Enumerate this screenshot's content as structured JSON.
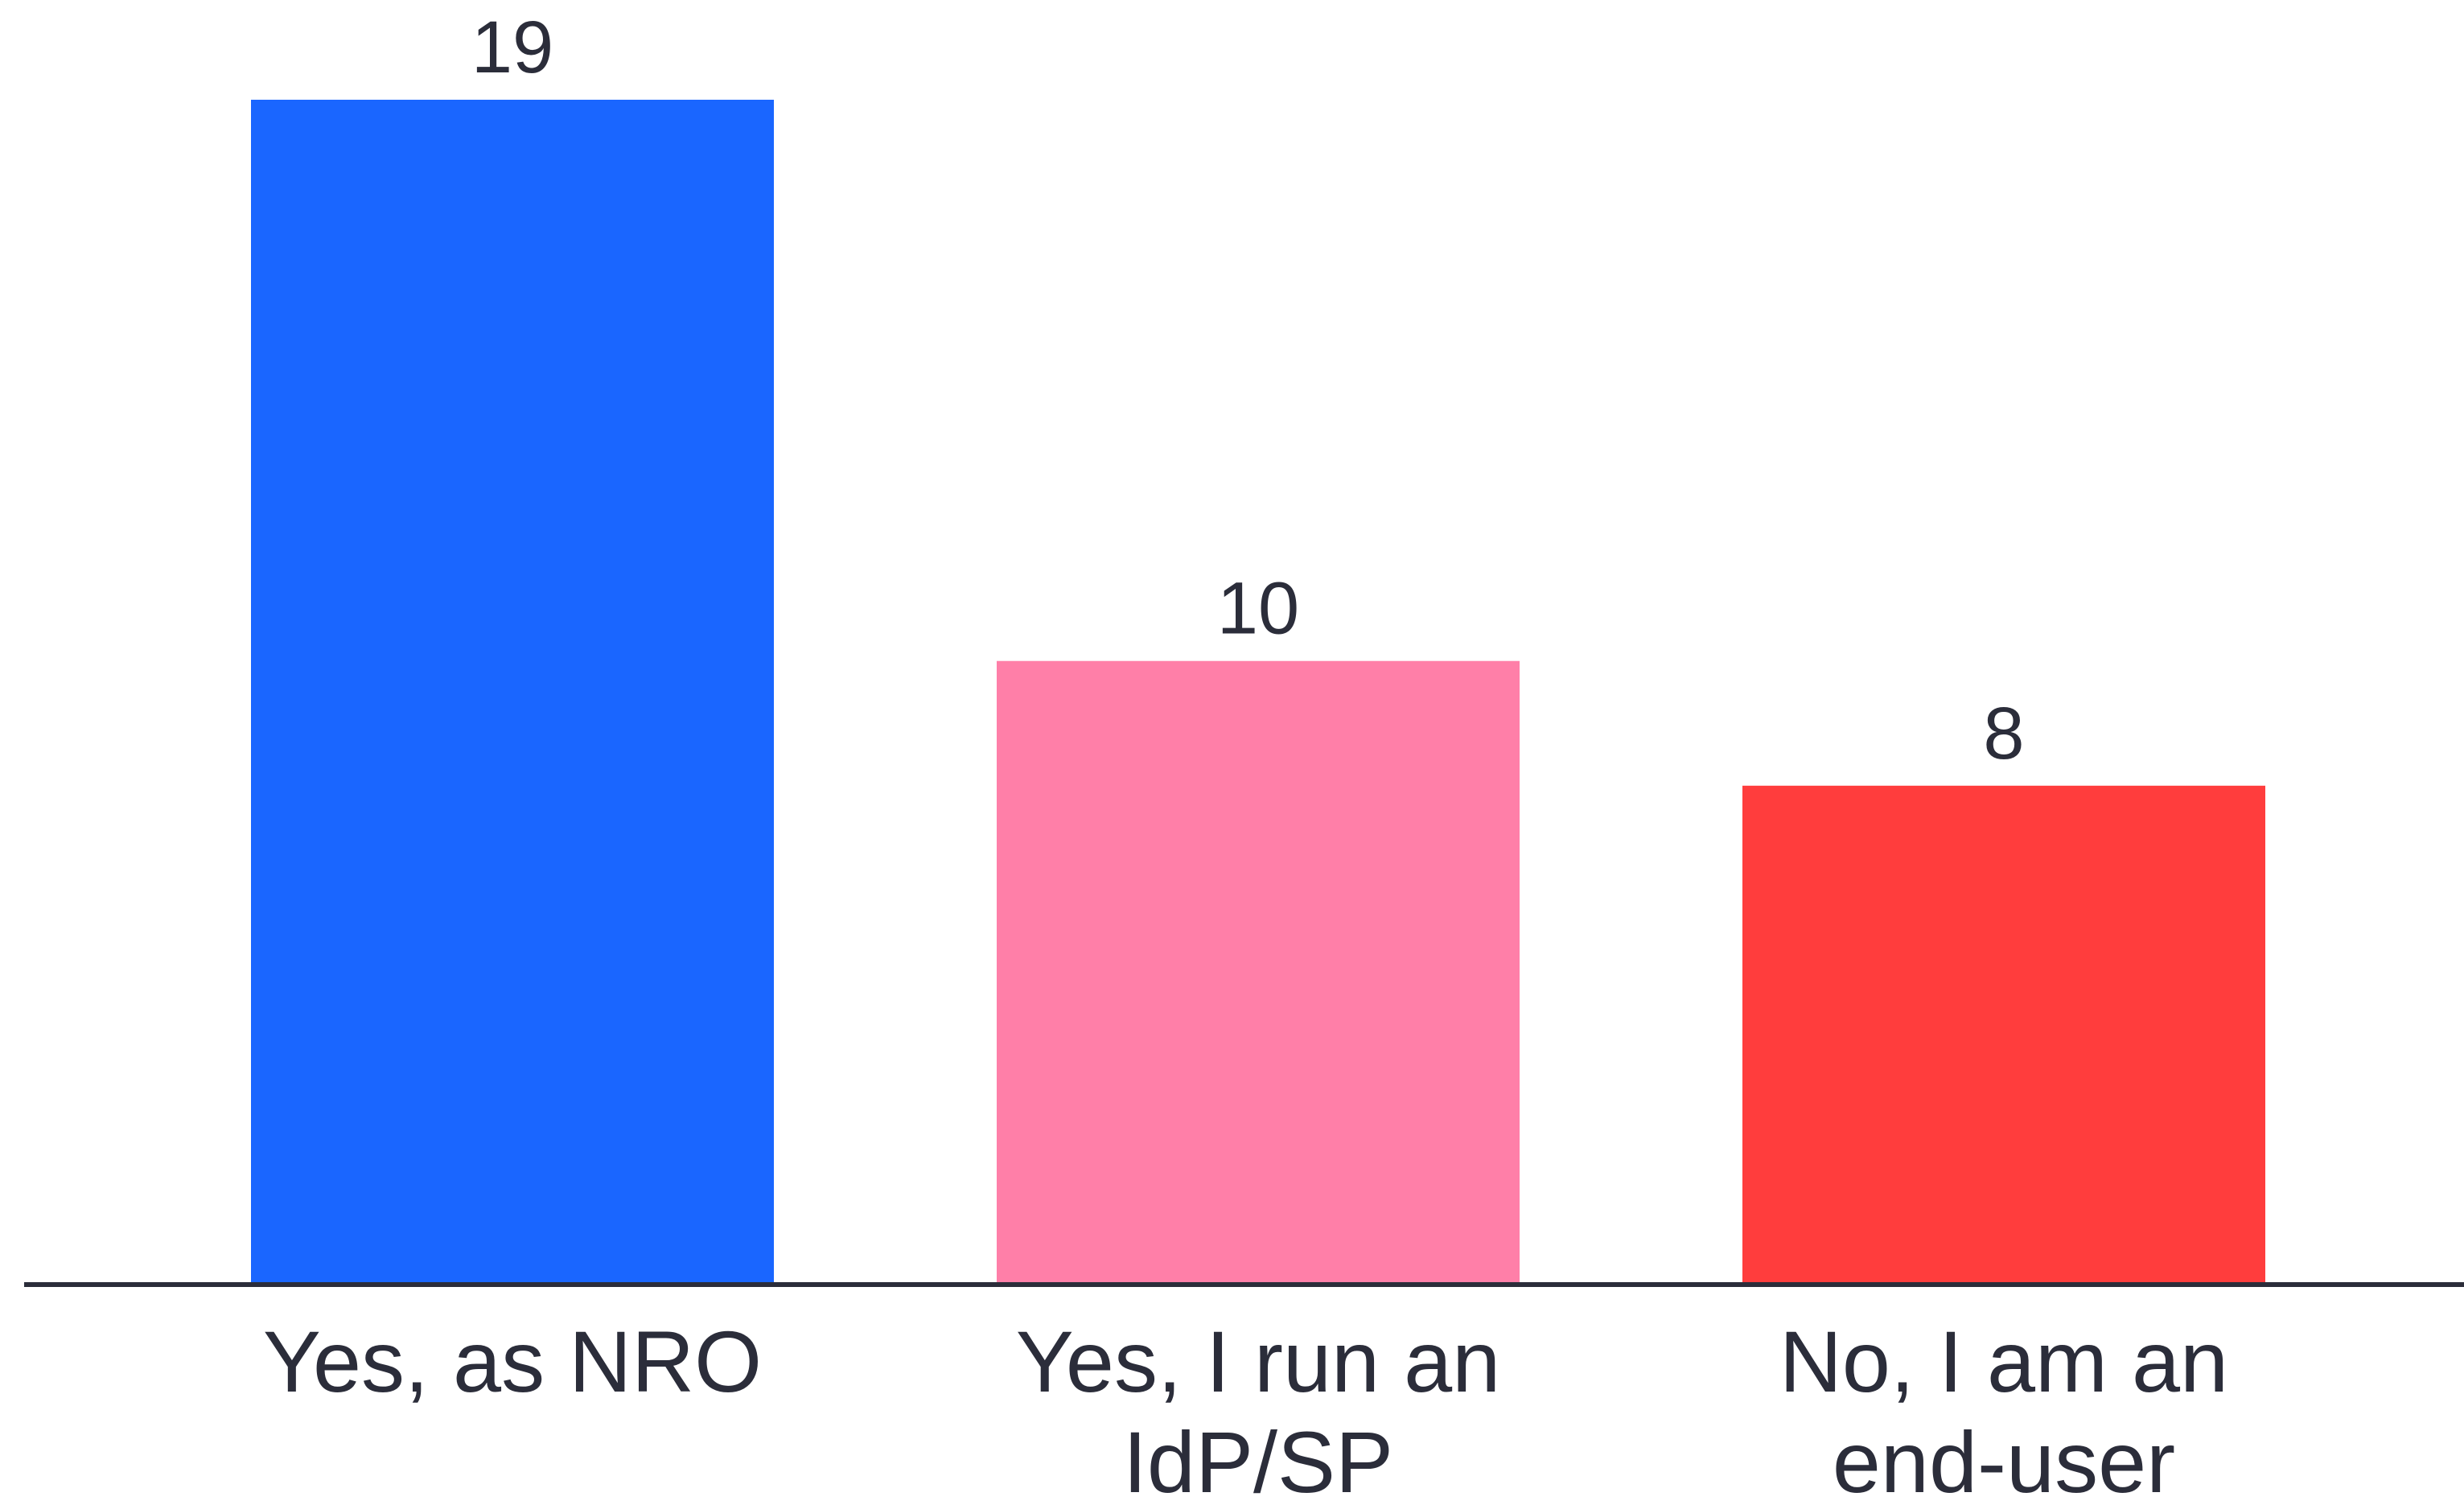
{
  "chart_data": {
    "type": "bar",
    "categories": [
      [
        "Yes, as NRO"
      ],
      [
        "Yes, I run an",
        "IdP/SP"
      ],
      [
        "No, I am an",
        "end-user"
      ]
    ],
    "values": [
      19,
      10,
      8
    ],
    "colors": [
      "#1a66ff",
      "#ff7fa8",
      "#ff3d3d"
    ],
    "data_labels": [
      "19",
      "10",
      "8"
    ],
    "axis_color": "#2b2d3a",
    "ylim": [
      0,
      19
    ],
    "grid": false,
    "title": "",
    "xlabel": "",
    "ylabel": ""
  }
}
